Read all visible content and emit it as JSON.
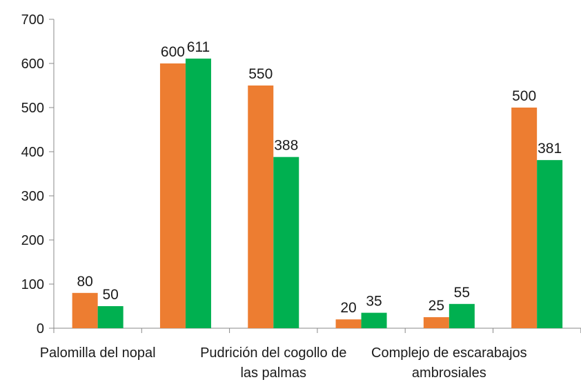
{
  "chart_data": {
    "type": "bar",
    "categories": [
      [
        "Palomilla del nopal"
      ],
      [
        ""
      ],
      [
        "Pudrición del cogollo de",
        "las palmas"
      ],
      [
        ""
      ],
      [
        "Complejo de escarabajos",
        "ambrosiales"
      ],
      [
        ""
      ]
    ],
    "series": [
      {
        "values": [
          80,
          600,
          550,
          20,
          25,
          500
        ],
        "color": "#ED7D31"
      },
      {
        "values": [
          50,
          611,
          388,
          35,
          55,
          381
        ],
        "color": "#00B050"
      }
    ],
    "ylim": [
      0,
      700
    ],
    "yticks": [
      0,
      100,
      200,
      300,
      400,
      500,
      600,
      700
    ],
    "grid": false,
    "legend": "none"
  }
}
